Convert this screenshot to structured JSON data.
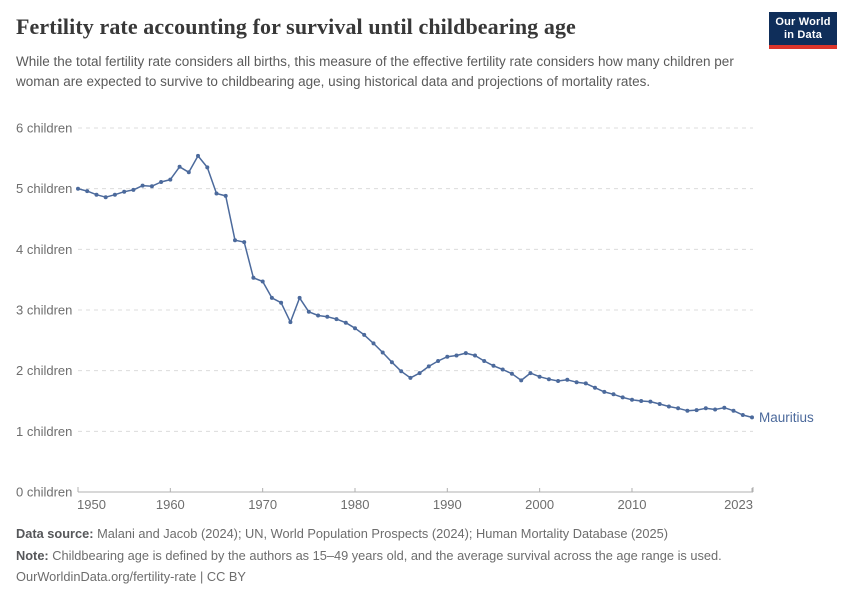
{
  "header": {
    "title": "Fertility rate accounting for survival until childbearing age",
    "subtitle": "While the total fertility rate considers all births, this measure of the effective fertility rate considers how many children per woman are expected to survive to childbearing age, using historical data and projections of mortality rates.",
    "logo": {
      "line1": "Our World",
      "line2": "in Data",
      "bg_color": "#0f2e5a",
      "accent_color": "#dc352b"
    }
  },
  "chart_data": {
    "type": "line",
    "title": "Fertility rate accounting for survival until childbearing age",
    "xlabel": "",
    "ylabel": "",
    "ylim": [
      0,
      6
    ],
    "xlim": [
      1950,
      2023
    ],
    "grid": "horizontal-dashed",
    "yticks": [
      0,
      1,
      2,
      3,
      4,
      5,
      6
    ],
    "ytick_suffix": " children",
    "xticks": [
      1950,
      1960,
      1970,
      1980,
      1990,
      2000,
      2010,
      2023
    ],
    "legend_position": "end-of-line-label",
    "series": [
      {
        "name": "Mauritius",
        "color": "#4c6a9c",
        "x": [
          1950,
          1951,
          1952,
          1953,
          1954,
          1955,
          1956,
          1957,
          1958,
          1959,
          1960,
          1961,
          1962,
          1963,
          1964,
          1965,
          1966,
          1967,
          1968,
          1969,
          1970,
          1971,
          1972,
          1973,
          1974,
          1975,
          1976,
          1977,
          1978,
          1979,
          1980,
          1981,
          1982,
          1983,
          1984,
          1985,
          1986,
          1987,
          1988,
          1989,
          1990,
          1991,
          1992,
          1993,
          1994,
          1995,
          1996,
          1997,
          1998,
          1999,
          2000,
          2001,
          2002,
          2003,
          2004,
          2005,
          2006,
          2007,
          2008,
          2009,
          2010,
          2011,
          2012,
          2013,
          2014,
          2015,
          2016,
          2017,
          2018,
          2019,
          2020,
          2021,
          2022,
          2023
        ],
        "values": [
          5.0,
          4.96,
          4.9,
          4.86,
          4.9,
          4.95,
          4.98,
          5.05,
          5.04,
          5.11,
          5.15,
          5.36,
          5.27,
          5.54,
          5.35,
          4.92,
          4.88,
          4.15,
          4.12,
          3.53,
          3.47,
          3.2,
          3.12,
          2.8,
          3.2,
          2.97,
          2.91,
          2.89,
          2.85,
          2.79,
          2.7,
          2.59,
          2.45,
          2.3,
          2.14,
          1.99,
          1.88,
          1.96,
          2.07,
          2.16,
          2.23,
          2.25,
          2.29,
          2.25,
          2.16,
          2.08,
          2.02,
          1.95,
          1.84,
          1.96,
          1.9,
          1.86,
          1.83,
          1.85,
          1.81,
          1.79,
          1.72,
          1.65,
          1.61,
          1.56,
          1.52,
          1.5,
          1.49,
          1.45,
          1.41,
          1.38,
          1.34,
          1.35,
          1.38,
          1.36,
          1.39,
          1.34,
          1.27,
          1.23
        ]
      }
    ],
    "colors": {
      "grid": "#dcdcdc",
      "axis": "#b0b0b0",
      "tick_label": "#6e6e6e"
    }
  },
  "footer": {
    "data_source_label": "Data source:",
    "data_source": "Malani and Jacob (2024); UN, World Population Prospects (2024); Human Mortality Database (2025)",
    "note_label": "Note:",
    "note": "Childbearing age is defined by the authors as 15–49 years old, and the average survival across the age range is used.",
    "license": "OurWorldinData.org/fertility-rate | CC BY"
  }
}
